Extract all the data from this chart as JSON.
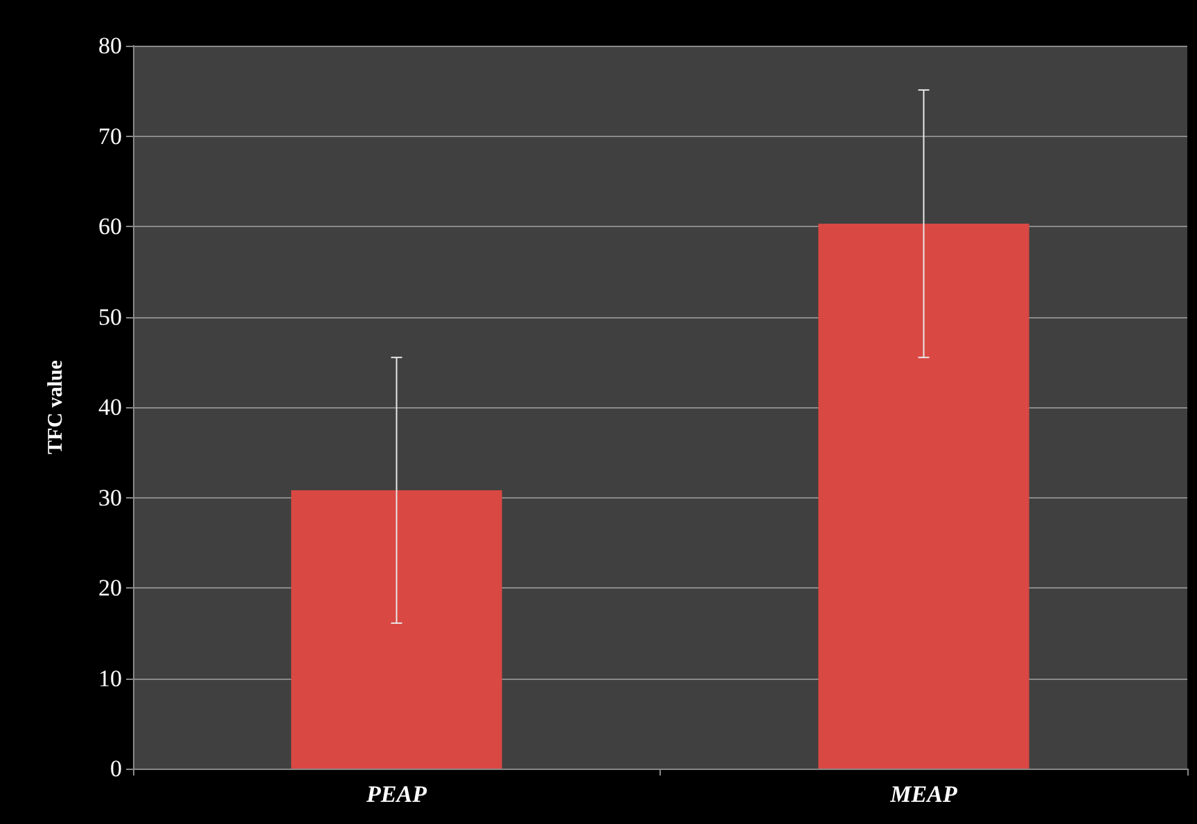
{
  "chart_data": {
    "type": "bar",
    "ylabel": "TFC value",
    "categories": [
      "PEAP",
      "MEAP"
    ],
    "series": [
      {
        "color": "#d94843",
        "values": [
          30.8,
          60.3
        ],
        "errors": [
          [
            16.1,
            45.5
          ],
          [
            45.5,
            75.1
          ]
        ]
      }
    ],
    "ylim": [
      0,
      80
    ],
    "yticks": [
      0,
      10,
      20,
      30,
      40,
      50,
      60,
      70,
      80
    ],
    "grid": "y"
  }
}
